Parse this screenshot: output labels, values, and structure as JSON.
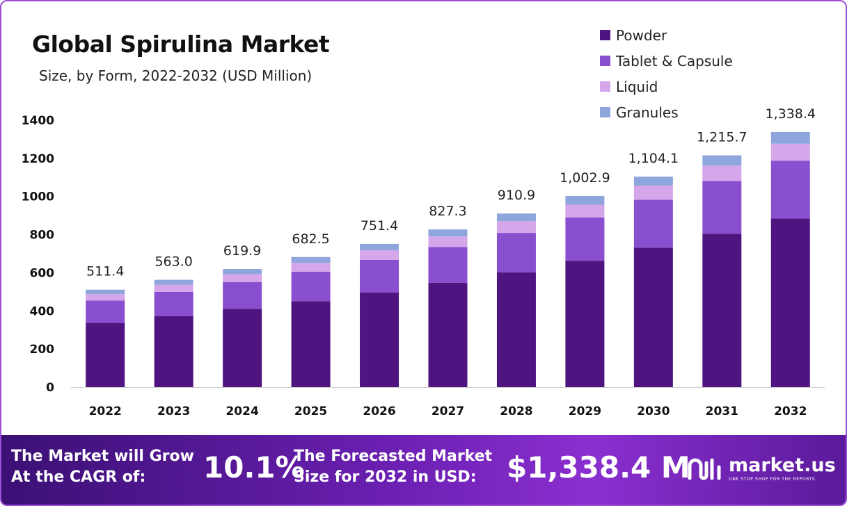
{
  "title": "Global Spirulina Market",
  "subtitle": "Size, by Form, 2022-2032 (USD Million)",
  "legend": [
    {
      "label": "Powder",
      "color": "#4f1480"
    },
    {
      "label": "Tablet & Capsule",
      "color": "#8a4fcf"
    },
    {
      "label": "Liquid",
      "color": "#d6a6ea"
    },
    {
      "label": "Granules",
      "color": "#8fa6dc"
    }
  ],
  "chart_data": {
    "type": "bar",
    "stacked": true,
    "categories": [
      "2022",
      "2023",
      "2024",
      "2025",
      "2026",
      "2027",
      "2028",
      "2029",
      "2030",
      "2031",
      "2032"
    ],
    "series": [
      {
        "name": "Powder",
        "values": [
          337,
          372,
          410,
          451,
          497,
          548,
          602,
          663,
          732,
          805,
          884
        ]
      },
      {
        "name": "Tablet & Capsule",
        "values": [
          117,
          128,
          141,
          155,
          171,
          187,
          207,
          227,
          251,
          276,
          304
        ]
      },
      {
        "name": "Liquid",
        "values": [
          34,
          37,
          41,
          46,
          50,
          55,
          61,
          67,
          74,
          81,
          89
        ]
      },
      {
        "name": "Granules",
        "values": [
          23.4,
          26.0,
          27.9,
          30.5,
          33.4,
          37.3,
          40.9,
          45.9,
          47.1,
          53.7,
          61.4
        ]
      }
    ],
    "totals": [
      "511.4",
      "563.0",
      "619.9",
      "682.5",
      "751.4",
      "827.3",
      "910.9",
      "1,002.9",
      "1,104.1",
      "1,215.7",
      "1,338.4"
    ],
    "yticks": [
      "0",
      "200",
      "400",
      "600",
      "800",
      "1000",
      "1200",
      "1400"
    ],
    "ylim": [
      0,
      1400
    ],
    "grid": false,
    "legend_position": "top-right"
  },
  "footer": {
    "cagr_label": "The Market will Grow At the CAGR of:",
    "cagr_value": "10.1%",
    "forecast_label": "The Forecasted Market Size for 2032 in USD:",
    "forecast_value": "$1,338.4 M",
    "brand_name": "market.us",
    "brand_tagline": "ONE STOP SHOP FOR THE REPORTS"
  }
}
